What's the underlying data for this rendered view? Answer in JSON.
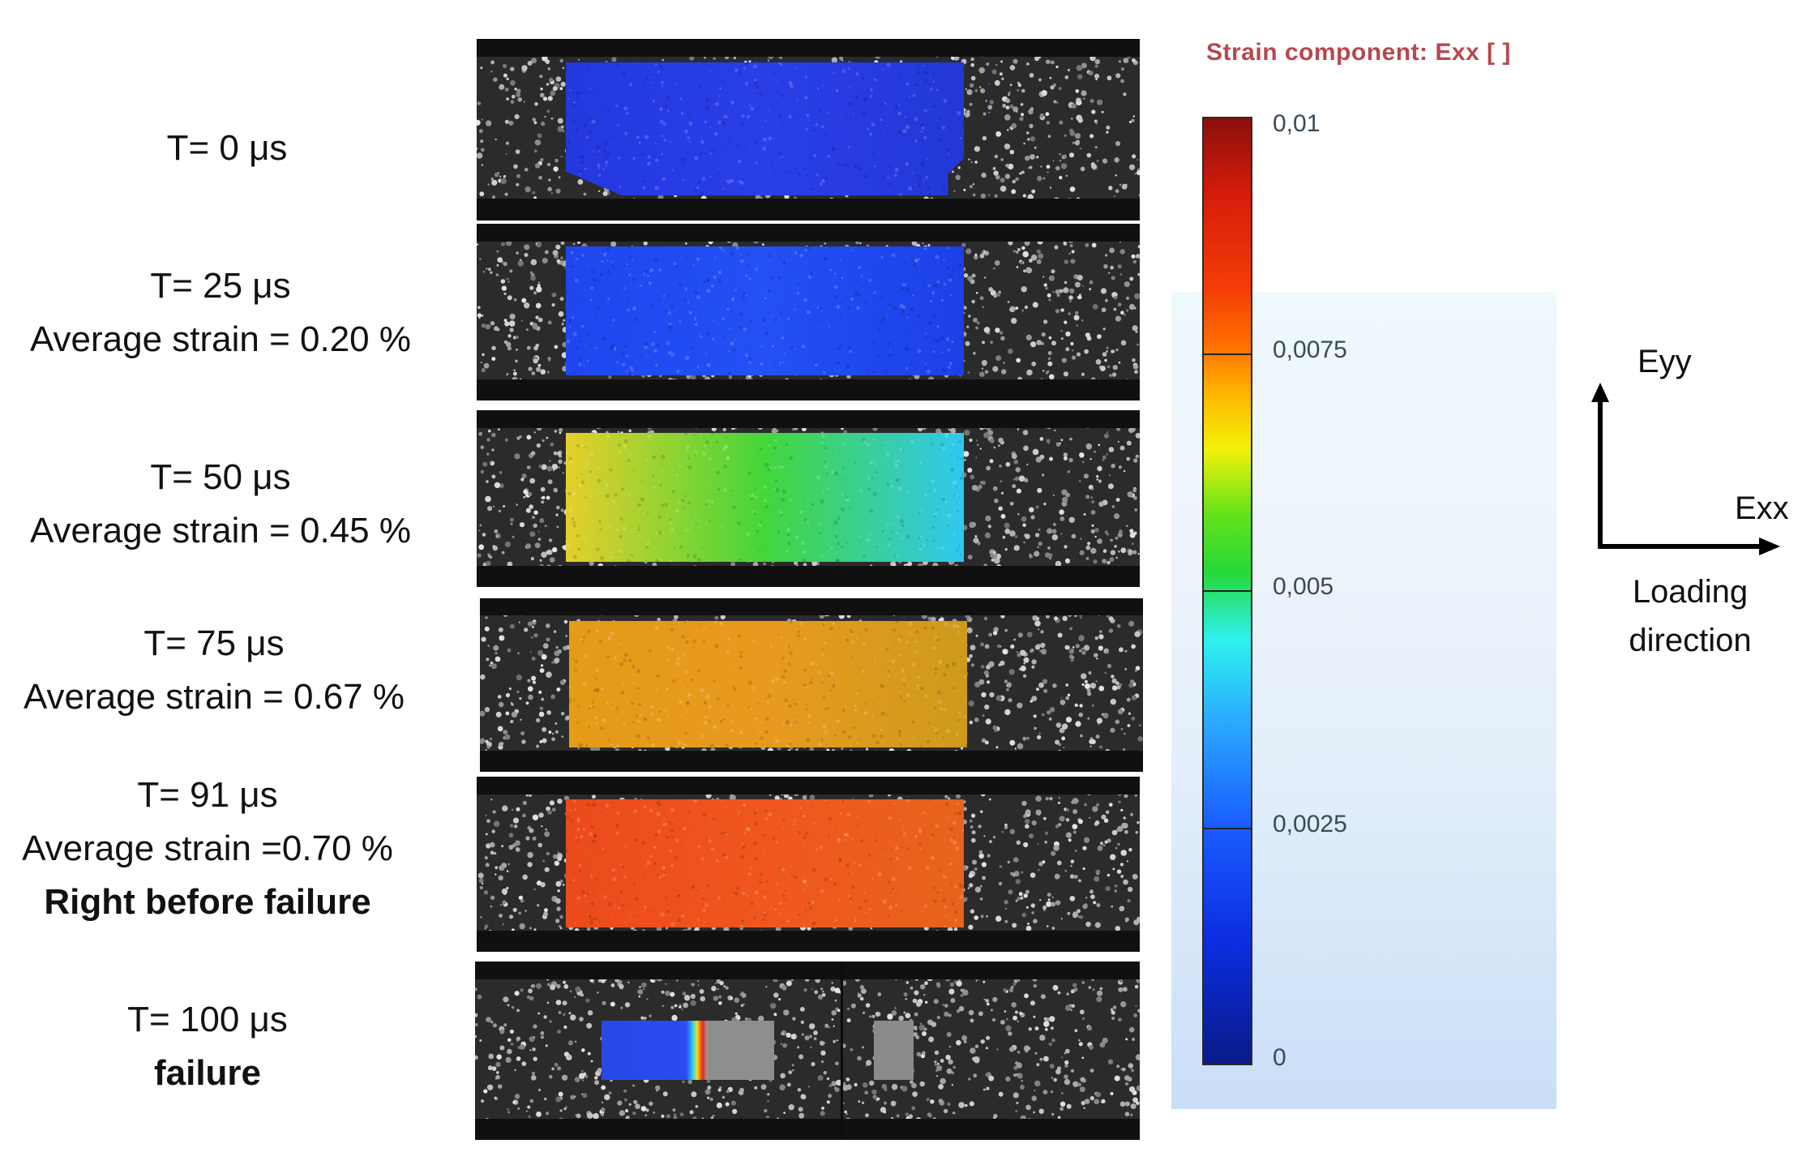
{
  "frames": [
    {
      "time_label": "T= 0 μs",
      "strain_label": "",
      "note": "",
      "field_colors": [
        "#2438e0",
        "#2a3ee8",
        "#2338d8"
      ],
      "field_fill": 0.0
    },
    {
      "time_label": "T= 25 μs",
      "strain_label": "Average strain = 0.20 %",
      "note": "",
      "field_colors": [
        "#1f46f0",
        "#2450f5",
        "#1c40e8"
      ],
      "field_fill": 0.2
    },
    {
      "time_label": "T= 50 μs",
      "strain_label": "Average strain = 0.45 %",
      "note": "",
      "field_colors": [
        "#e6cf2a",
        "#43d63a",
        "#30c8f0"
      ],
      "field_fill": 0.45
    },
    {
      "time_label": "T= 75 μs",
      "strain_label": "Average strain = 0.67 %",
      "note": "",
      "field_colors": [
        "#e59a18",
        "#e89a1e",
        "#cf9a1c"
      ],
      "field_fill": 0.67
    },
    {
      "time_label": "T= 91 μs",
      "strain_label": "Average strain =0.70 %",
      "note": "Right before failure",
      "field_colors": [
        "#ec4a1c",
        "#f0561e",
        "#e8641c"
      ],
      "field_fill": 0.7
    },
    {
      "time_label": "T= 100 μs",
      "strain_label": "",
      "note": "failure",
      "field_colors": [
        "#2848e8",
        "#2a4cf0",
        "#2848e8"
      ],
      "field_fill": 0.0
    }
  ],
  "colorbar": {
    "title": "Strain component: Exx [ ]",
    "ticks": [
      "0,01",
      "0,0075",
      "0,005",
      "0,0025",
      "0"
    ],
    "tick_values": [
      0.01,
      0.0075,
      0.005,
      0.0025,
      0
    ],
    "min": 0,
    "max": 0.01,
    "title_color": "#b8474f"
  },
  "axes": {
    "vertical_label": "Eyy",
    "horizontal_label": "Exx",
    "caption_line1": "Loading",
    "caption_line2": "direction"
  }
}
